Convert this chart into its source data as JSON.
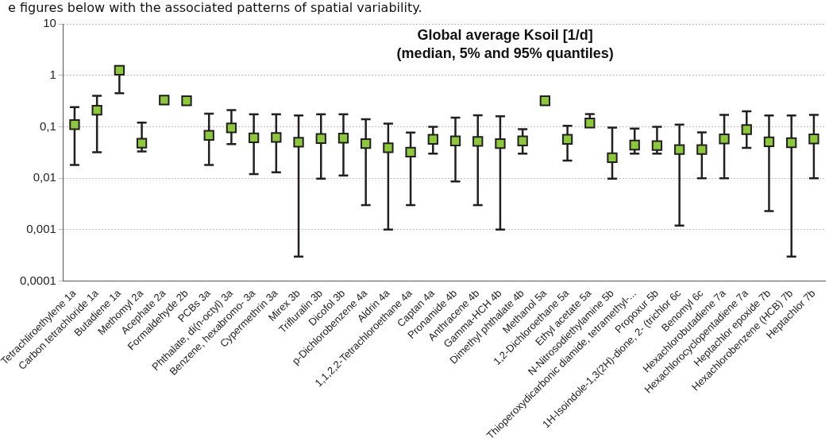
{
  "chart_data": {
    "type": "scatter",
    "title": "Global average Ksoil [1/d]",
    "subtitle": "(median, 5% and 95% quantiles)",
    "annotations": [
      "e figures below with the associated patterns of spatial variability."
    ],
    "categories": [
      "Tetrachliroethylene 1a",
      "Carbon tetrachloride 1a",
      "Butadiene 1a",
      "Methomyl 2a",
      "Acephate 2a",
      "Formaldehyde 2b",
      "PCBs 3a",
      "Phthalate, di(n-octyl) 3a",
      "Benzene, hexabromo- 3a",
      "Cypermethrin 3a",
      "Mirex 3b",
      "Trifluralin 3b",
      "Dicofol 3b",
      "p-Dichlorobenzene 4a",
      "Aldrin 4a",
      "1,1,2,2-Tetrachloroethane 4a",
      "Captan 4a",
      "Pronamide 4b",
      "Anthracene 4b",
      "Gamma-HCH 4b",
      "Dimethyl phthalate 4b",
      "Methanol 5a",
      "1,2-Dichloroethane 5a",
      "Ethyl acetate 5a",
      "N-Nitrosodiethylamine 5b",
      "Thioperoxydicarbonic diamide, tetramethyl-...",
      "Propoxur 5b",
      "1H-Isoindole-1,3(2H)-dione, 2- (trichlor 6c",
      "Benomyl 6c",
      "Hexachlorobutadiene 7a",
      "Hexachlorocyclopentadiene 7a",
      "Heptachlor epoxide 7b",
      "Hexachlorobenzene (HCB) 7b",
      "Heptachlor 7b"
    ],
    "values": [
      0.11,
      0.21,
      1.25,
      0.048,
      0.33,
      0.32,
      0.068,
      0.095,
      0.061,
      0.062,
      0.05,
      0.059,
      0.06,
      0.047,
      0.039,
      0.032,
      0.057,
      0.053,
      0.052,
      0.047,
      0.053,
      0.32,
      0.057,
      0.118,
      0.025,
      0.044,
      0.043,
      0.036,
      0.036,
      0.058,
      0.088,
      0.051,
      0.049,
      0.058
    ],
    "errors": [
      [
        0.018,
        0.24
      ],
      [
        0.032,
        0.4
      ],
      [
        0.45,
        1.25
      ],
      [
        0.033,
        0.12
      ],
      null,
      null,
      [
        0.018,
        0.18
      ],
      [
        0.046,
        0.21
      ],
      [
        0.012,
        0.175
      ],
      [
        0.013,
        0.175
      ],
      [
        0.0003,
        0.165
      ],
      [
        0.0098,
        0.175
      ],
      [
        0.0113,
        0.175
      ],
      [
        0.003,
        0.14
      ],
      [
        0.001,
        0.115
      ],
      [
        0.003,
        0.077
      ],
      [
        0.03,
        0.1
      ],
      [
        0.0086,
        0.15
      ],
      [
        0.003,
        0.167
      ],
      [
        0.001,
        0.16
      ],
      [
        0.03,
        0.09
      ],
      null,
      [
        0.022,
        0.104
      ],
      [
        0.118,
        0.176
      ],
      [
        0.0098,
        0.096
      ],
      [
        0.03,
        0.092
      ],
      [
        0.03,
        0.1
      ],
      [
        0.0012,
        0.11
      ],
      [
        0.01,
        0.078
      ],
      [
        0.01,
        0.17
      ],
      [
        0.039,
        0.2
      ],
      [
        0.0023,
        0.165
      ],
      [
        0.0003,
        0.165
      ],
      [
        0.01,
        0.17
      ]
    ],
    "color": "#8dc63f",
    "marker": "square",
    "log": "y",
    "grid": "y",
    "legend": false,
    "ylim": [
      0.0001,
      10
    ],
    "yticks": [
      {
        "value": 0.0001,
        "label": "0,0001"
      },
      {
        "value": 0.001,
        "label": "0,001"
      },
      {
        "value": 0.01,
        "label": "0,01"
      },
      {
        "value": 0.1,
        "label": "0,1"
      },
      1,
      10
    ]
  }
}
